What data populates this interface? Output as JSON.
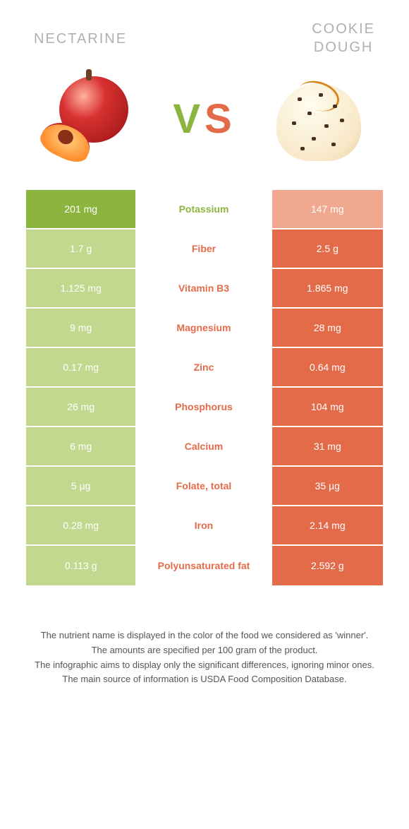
{
  "titles": {
    "left": "NECTARINE",
    "right_l1": "COOKIE",
    "right_l2": "DOUGH"
  },
  "vs": {
    "v": "V",
    "s": "S"
  },
  "colors": {
    "left_food": "#8bb53f",
    "right_food": "#e46b4a",
    "left_muted": "#c2d88f",
    "right_muted": "#f0a890",
    "label_left": "#8bb53f",
    "label_right": "#e46b4a"
  },
  "layout": {
    "left_width": 158,
    "center_width": 192,
    "right_width": 158
  },
  "rows": [
    {
      "label": "Potassium",
      "left": "201 mg",
      "right": "147 mg",
      "winner": "left"
    },
    {
      "label": "Fiber",
      "left": "1.7 g",
      "right": "2.5 g",
      "winner": "right"
    },
    {
      "label": "Vitamin B3",
      "left": "1.125 mg",
      "right": "1.865 mg",
      "winner": "right"
    },
    {
      "label": "Magnesium",
      "left": "9 mg",
      "right": "28 mg",
      "winner": "right"
    },
    {
      "label": "Zinc",
      "left": "0.17 mg",
      "right": "0.64 mg",
      "winner": "right"
    },
    {
      "label": "Phosphorus",
      "left": "26 mg",
      "right": "104 mg",
      "winner": "right"
    },
    {
      "label": "Calcium",
      "left": "6 mg",
      "right": "31 mg",
      "winner": "right"
    },
    {
      "label": "Folate, total",
      "left": "5 µg",
      "right": "35 µg",
      "winner": "right"
    },
    {
      "label": "Iron",
      "left": "0.28 mg",
      "right": "2.14 mg",
      "winner": "right"
    },
    {
      "label": "Polyunsaturated fat",
      "left": "0.113 g",
      "right": "2.592 g",
      "winner": "right"
    }
  ],
  "footer": {
    "l1": "The nutrient name is displayed in the color of the food we considered as 'winner'.",
    "l2": "The amounts are specified per 100 gram of the product.",
    "l3": "The infographic aims to display only the significant differences, ignoring minor ones.",
    "l4": "The main source of information is USDA Food Composition Database."
  }
}
